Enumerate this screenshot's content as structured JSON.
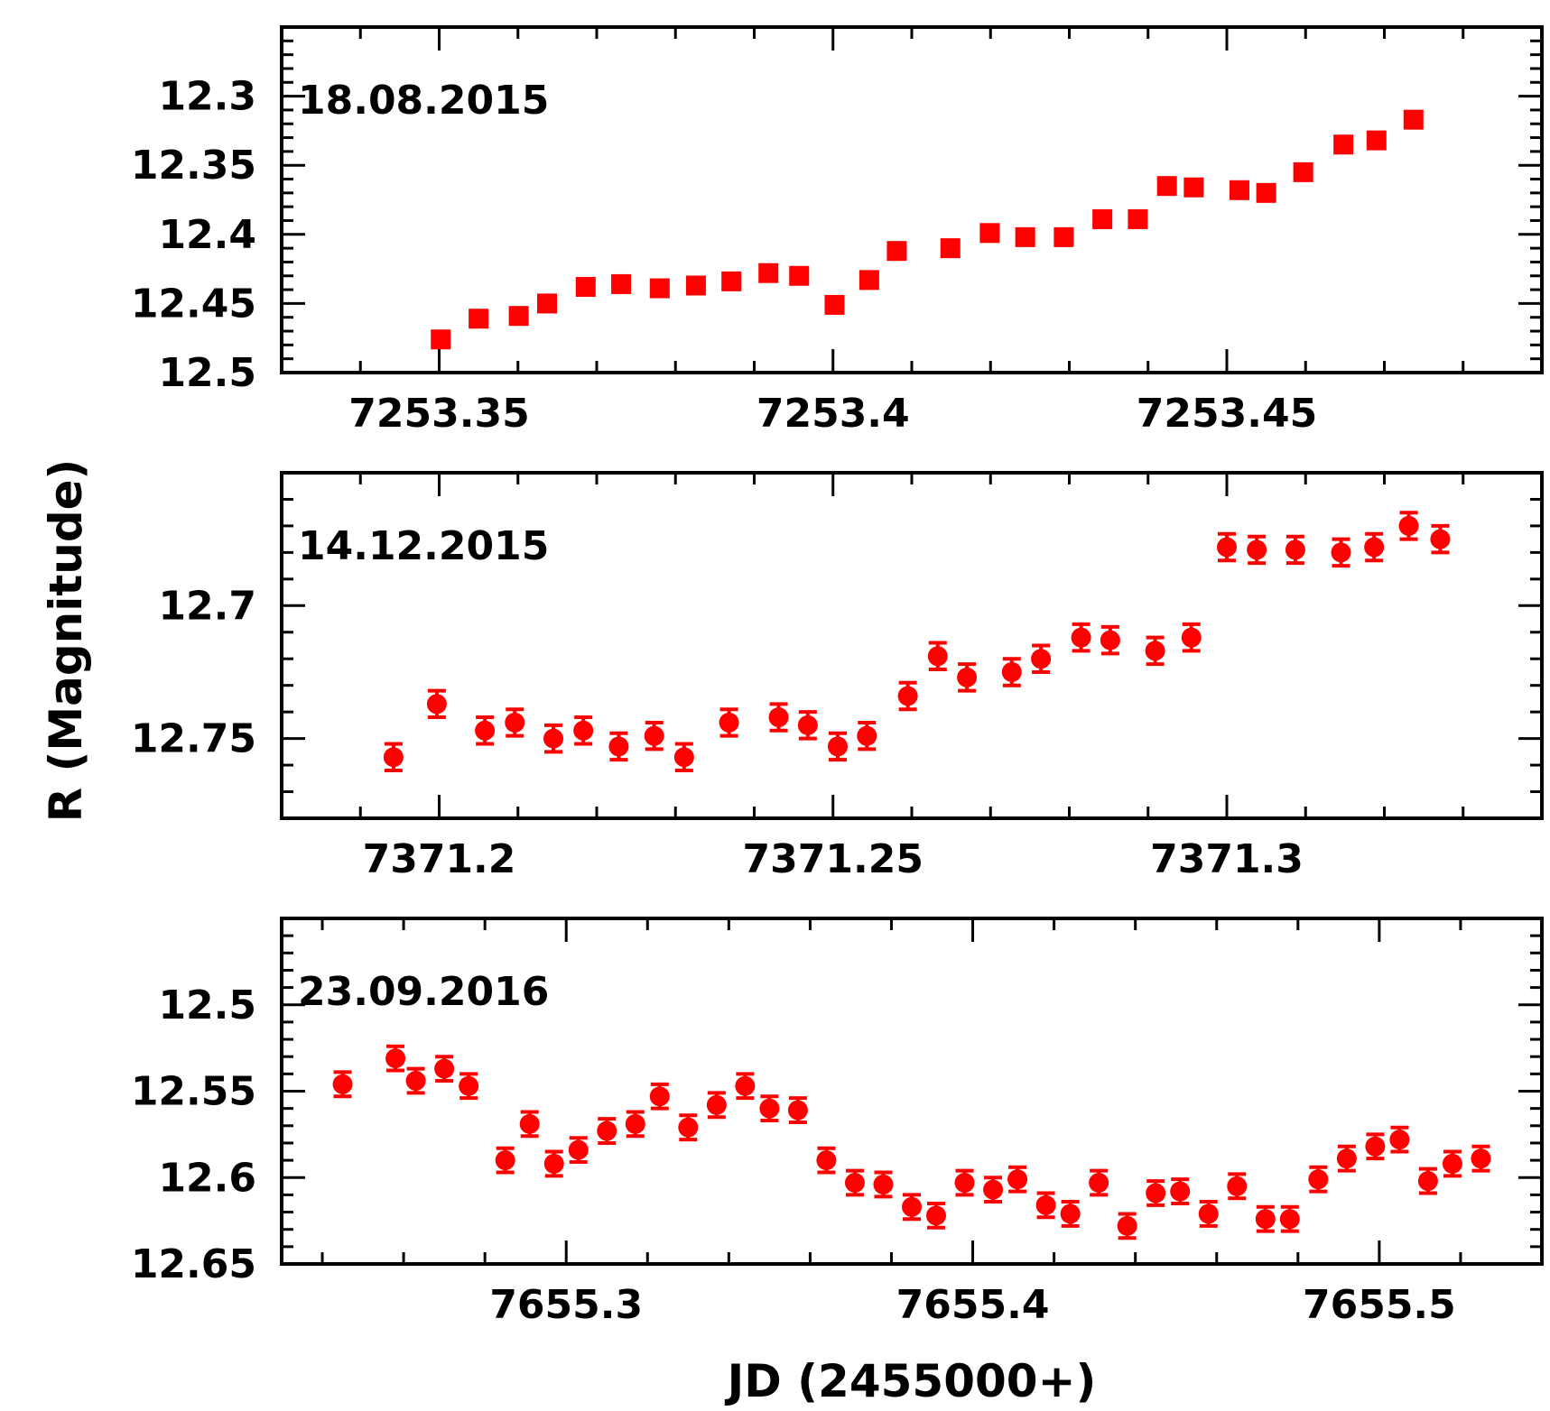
{
  "colors": {
    "marker": "#ff0000",
    "axes": "#000000",
    "background": "#ffffff"
  },
  "chart_data": {
    "type": "scatter",
    "xlabel": "JD (2455000+)",
    "ylabel": "R (Magnitude)",
    "panels": [
      {
        "label": "18.08.2015",
        "marker": "square",
        "error_bars": false,
        "xlim": [
          7253.33,
          7253.49
        ],
        "ylim": [
          12.5,
          12.25
        ],
        "xticks": [
          7253.35,
          7253.4,
          7253.45
        ],
        "xtick_labels": [
          "7253.35",
          "7253.4",
          "7253.45"
        ],
        "yticks": [
          12.3,
          12.35,
          12.4,
          12.45,
          12.5
        ],
        "ytick_labels": [
          "12.3",
          "12.35",
          "12.4",
          "12.45",
          "12.5"
        ],
        "x": [
          7253.3502,
          7253.355,
          7253.3601,
          7253.3637,
          7253.3686,
          7253.3731,
          7253.378,
          7253.3826,
          7253.3871,
          7253.3918,
          7253.3957,
          7253.4002,
          7253.4046,
          7253.4081,
          7253.4149,
          7253.4199,
          7253.4244,
          7253.4293,
          7253.4342,
          7253.4387,
          7253.4424,
          7253.4458,
          7253.4516,
          7253.455,
          7253.4597,
          7253.4648,
          7253.469,
          7253.4737
        ],
        "y": [
          12.476,
          12.461,
          12.459,
          12.45,
          12.438,
          12.436,
          12.439,
          12.437,
          12.434,
          12.428,
          12.43,
          12.451,
          12.433,
          12.412,
          12.41,
          12.399,
          12.402,
          12.402,
          12.389,
          12.389,
          12.365,
          12.366,
          12.368,
          12.37,
          12.355,
          12.335,
          12.332,
          12.317
        ],
        "series": []
      },
      {
        "label": "14.12.2015",
        "marker": "circle",
        "error_bars": true,
        "xlim": [
          7371.18,
          7371.34
        ],
        "ylim": [
          12.78,
          12.65
        ],
        "xticks": [
          7371.2,
          7371.25,
          7371.3
        ],
        "xtick_labels": [
          "7371.2",
          "7371.25",
          "7371.3"
        ],
        "yticks": [
          12.7,
          12.75
        ],
        "ytick_labels": [
          "12.7",
          "12.75"
        ],
        "x": [
          7371.1942,
          7371.1997,
          7371.2058,
          7371.2096,
          7371.2145,
          7371.2183,
          7371.2228,
          7371.2273,
          7371.2311,
          7371.2368,
          7371.2431,
          7371.2468,
          7371.2506,
          7371.2543,
          7371.2595,
          7371.2633,
          7371.267,
          7371.2727,
          7371.2764,
          7371.2815,
          7371.2852,
          7371.2909,
          7371.2955,
          7371.3,
          7371.3038,
          7371.3087,
          7371.3145,
          7371.3187,
          7371.3231,
          7371.3271
        ],
        "y": [
          12.757,
          12.737,
          12.747,
          12.744,
          12.75,
          12.747,
          12.753,
          12.749,
          12.757,
          12.744,
          12.742,
          12.745,
          12.753,
          12.749,
          12.734,
          12.719,
          12.727,
          12.725,
          12.72,
          12.712,
          12.713,
          12.717,
          12.712,
          12.678,
          12.679,
          12.679,
          12.68,
          12.678,
          12.67,
          12.675
        ],
        "y_err": [
          0.005,
          0.005,
          0.005,
          0.005,
          0.005,
          0.005,
          0.005,
          0.005,
          0.005,
          0.005,
          0.005,
          0.005,
          0.005,
          0.005,
          0.005,
          0.005,
          0.005,
          0.005,
          0.005,
          0.005,
          0.005,
          0.005,
          0.005,
          0.005,
          0.005,
          0.005,
          0.005,
          0.005,
          0.005,
          0.005
        ],
        "series": []
      },
      {
        "label": "23.09.2016",
        "marker": "circle",
        "error_bars": true,
        "xlim": [
          7655.23,
          7655.54
        ],
        "ylim": [
          12.65,
          12.45
        ],
        "xticks": [
          7655.3,
          7655.4,
          7655.5
        ],
        "xtick_labels": [
          "7655.3",
          "7655.4",
          "7655.5"
        ],
        "yticks": [
          12.5,
          12.55,
          12.6,
          12.65
        ],
        "ytick_labels": [
          "12.5",
          "12.55",
          "12.6",
          "12.65"
        ],
        "x": [
          7655.245,
          7655.258,
          7655.263,
          7655.27,
          7655.276,
          7655.285,
          7655.291,
          7655.297,
          7655.303,
          7655.31,
          7655.317,
          7655.323,
          7655.33,
          7655.337,
          7655.344,
          7655.35,
          7655.357,
          7655.364,
          7655.371,
          7655.378,
          7655.385,
          7655.391,
          7655.398,
          7655.405,
          7655.411,
          7655.418,
          7655.424,
          7655.431,
          7655.438,
          7655.445,
          7655.451,
          7655.458,
          7655.465,
          7655.472,
          7655.478,
          7655.485,
          7655.492,
          7655.499,
          7655.505,
          7655.512,
          7655.518,
          7655.525
        ],
        "y": [
          12.546,
          12.531,
          12.544,
          12.537,
          12.547,
          12.59,
          12.569,
          12.592,
          12.584,
          12.573,
          12.569,
          12.553,
          12.571,
          12.558,
          12.547,
          12.56,
          12.561,
          12.59,
          12.603,
          12.604,
          12.617,
          12.622,
          12.603,
          12.607,
          12.601,
          12.616,
          12.621,
          12.603,
          12.628,
          12.609,
          12.608,
          12.621,
          12.605,
          12.624,
          12.624,
          12.601,
          12.589,
          12.582,
          12.578,
          12.602,
          12.592,
          12.589
        ],
        "y_err": [
          0.007,
          0.007,
          0.007,
          0.007,
          0.007,
          0.007,
          0.007,
          0.007,
          0.007,
          0.007,
          0.007,
          0.007,
          0.007,
          0.007,
          0.007,
          0.007,
          0.007,
          0.007,
          0.007,
          0.007,
          0.007,
          0.007,
          0.007,
          0.007,
          0.007,
          0.007,
          0.007,
          0.007,
          0.007,
          0.007,
          0.007,
          0.007,
          0.007,
          0.007,
          0.007,
          0.007,
          0.007,
          0.007,
          0.007,
          0.007,
          0.007,
          0.007
        ],
        "series": []
      }
    ]
  }
}
